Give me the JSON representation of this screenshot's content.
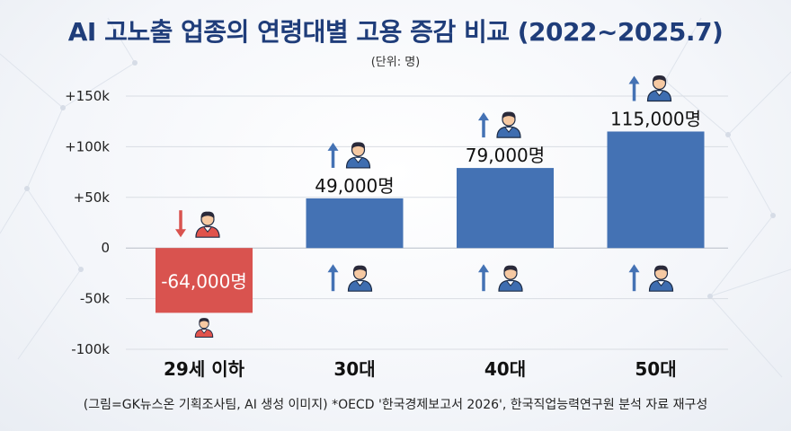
{
  "title": "AI 고노출 업종의 연령대별 고용 증감 비교 (2022~2025.7)",
  "unit_note": "(단위: 명)",
  "source": "(그림=GK뉴스온 기획조사팀, AI 생성 이미지) *OECD '한국경제보고서 2026', 한국직업능력연구원 분석 자료 재구성",
  "colors": {
    "positive": "#4472b4",
    "negative": "#d9534f",
    "grid": "#d9dde3",
    "title": "#1f3d7a"
  },
  "chart_data": {
    "type": "bar",
    "categories": [
      "29세 이하",
      "30대",
      "40대",
      "50대"
    ],
    "values": [
      -64000,
      49000,
      79000,
      115000
    ],
    "data_labels": [
      "-64,000명",
      "49,000명",
      "79,000명",
      "115,000명"
    ],
    "yticks": [
      150000,
      100000,
      50000,
      0,
      -50000,
      -100000
    ],
    "ytick_labels": [
      "+150k",
      "+100k",
      "+50k",
      "0",
      "-50k",
      "-100k"
    ],
    "ylim": [
      -100000,
      150000
    ],
    "grid": true,
    "icons": [
      "person-down-icon",
      "person-up-icon",
      "person-up-icon",
      "person-up-icon"
    ]
  }
}
